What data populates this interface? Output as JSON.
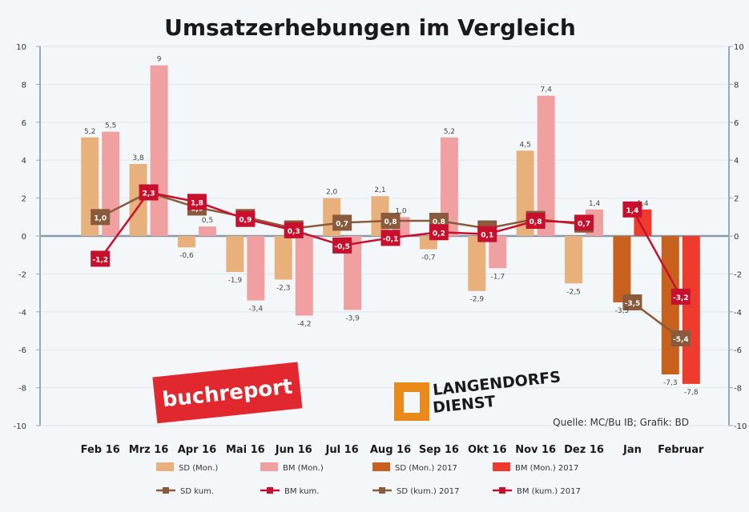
{
  "chart_data": {
    "type": "bar",
    "title": "Umsatzerhebungen im Vergleich",
    "source": "Quelle: MC/Bu IB; Grafik: BD",
    "logos": {
      "buchreport": "buchreport",
      "lagedienst_line1": "LANGENDORFS",
      "lagedienst_line2": "DIENST"
    },
    "categories": [
      "Feb 16",
      "Mrz 16",
      "Apr 16",
      "Mai 16",
      "Jun 16",
      "Jul 16",
      "Aug 16",
      "Sep 16",
      "Okt 16",
      "Nov 16",
      "Dez 16",
      "Jan",
      "Februar"
    ],
    "ylim": [
      -10,
      10
    ],
    "y_ticks": [
      -10,
      -8,
      -6,
      -4,
      -2,
      0,
      2,
      4,
      6,
      8,
      10
    ],
    "gridlines": true,
    "legend_position": "bottom",
    "colors": {
      "sd_bar": "#e8b07a",
      "bm_bar": "#f0a0a0",
      "sd_2017_bar": "#c8611e",
      "bm_2017_bar": "#ee3b2e",
      "sd_kum": "#8a5a3c",
      "bm_kum": "#c8102e",
      "zero_line": "#8899aa"
    },
    "bar_series": [
      {
        "name": "SD (Mon.)",
        "values": [
          5.2,
          3.8,
          -0.6,
          -1.9,
          -2.3,
          2.0,
          2.1,
          -0.7,
          -2.9,
          4.5,
          -2.5,
          null,
          null
        ],
        "color_key": "sd_bar"
      },
      {
        "name": "BM (Mon.)",
        "values": [
          5.5,
          9.0,
          0.5,
          -3.4,
          -4.2,
          -3.9,
          1.0,
          5.2,
          -1.7,
          7.4,
          1.4,
          null,
          null
        ],
        "color_key": "bm_bar"
      },
      {
        "name": "SD (Mon.) 2017",
        "values": [
          null,
          null,
          null,
          null,
          null,
          null,
          null,
          null,
          null,
          null,
          null,
          -3.5,
          -7.3
        ],
        "color_key": "sd_2017_bar"
      },
      {
        "name": "BM (Mon.) 2017",
        "values": [
          null,
          null,
          null,
          null,
          null,
          null,
          null,
          null,
          null,
          null,
          null,
          1.4,
          -7.8
        ],
        "color_key": "bm_2017_bar"
      }
    ],
    "line_series": [
      {
        "name": "SD kum.",
        "values": [
          1.0,
          2.3,
          1.5,
          1.0,
          0.4,
          0.7,
          0.8,
          0.8,
          0.4,
          0.9,
          0.6,
          null,
          null
        ],
        "color_key": "sd_kum"
      },
      {
        "name": "BM kum.",
        "values": [
          -1.2,
          2.3,
          1.8,
          0.9,
          0.3,
          -0.5,
          -0.1,
          0.2,
          0.1,
          0.8,
          0.7,
          null,
          null
        ],
        "color_key": "bm_kum"
      },
      {
        "name": "SD (kum.) 2017",
        "values": [
          null,
          null,
          null,
          null,
          null,
          null,
          null,
          null,
          null,
          null,
          null,
          -3.5,
          -5.4
        ],
        "color_key": "sd_kum"
      },
      {
        "name": "BM (kum.) 2017",
        "values": [
          null,
          null,
          null,
          null,
          null,
          null,
          null,
          null,
          null,
          null,
          null,
          1.4,
          -3.2
        ],
        "color_key": "bm_kum"
      }
    ],
    "bar_labels": [
      [
        "5,2",
        "3,8",
        "-0,6",
        "-1,9",
        "-2,3",
        "2,0",
        "2,1",
        "-0,7",
        "-2,9",
        "4,5",
        "-2,5",
        "",
        ""
      ],
      [
        "5,5",
        "9",
        "0,5",
        "-3,4",
        "-4,2",
        "-3,9",
        "1,0",
        "5,2",
        "-1,7",
        "7,4",
        "1,4",
        "",
        ""
      ],
      [
        "",
        "",
        "",
        "",
        "",
        "",
        "",
        "",
        "",
        "",
        "",
        "-3,5",
        "-7,3"
      ],
      [
        "",
        "",
        "",
        "",
        "",
        "",
        "",
        "",
        "",
        "",
        "",
        "1,4",
        "-7,8"
      ]
    ],
    "line_labels": [
      [
        "1,0",
        "2,3",
        "1,5",
        "1,0",
        "0,4",
        "0,7",
        "0,8",
        "0,8",
        "0,4",
        "0,9",
        "0,6",
        "",
        ""
      ],
      [
        "-1,2",
        "2,3",
        "1,8",
        "0,9",
        "0,3",
        "-0,5",
        "-0,1",
        "0,2",
        "0,1",
        "0,8",
        "0,7",
        "",
        ""
      ],
      [
        "",
        "",
        "",
        "",
        "",
        "",
        "",
        "",
        "",
        "",
        "",
        "-3,5",
        "-5,4"
      ],
      [
        "",
        "",
        "",
        "",
        "",
        "",
        "",
        "",
        "",
        "",
        "",
        "1,4",
        "-3,2"
      ]
    ]
  }
}
